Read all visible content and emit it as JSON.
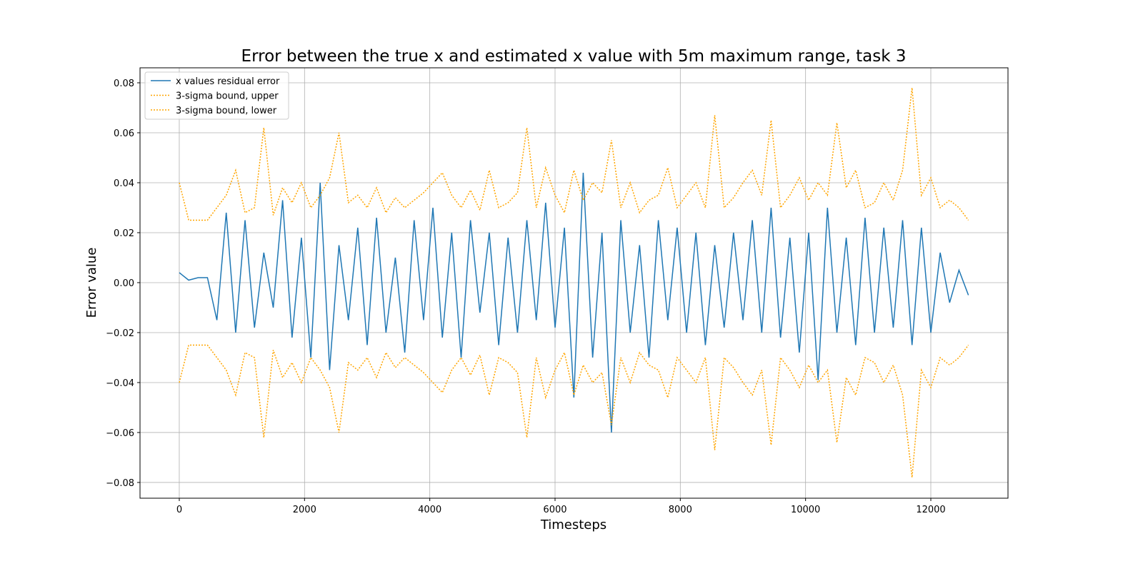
{
  "chart_data": {
    "type": "line",
    "title": "Error between the true x and estimated x value with 5m maximum range, task 3",
    "xlabel": "Timesteps",
    "ylabel": "Error value",
    "x": [
      0,
      150,
      300,
      450,
      600,
      750,
      900,
      1050,
      1200,
      1350,
      1500,
      1650,
      1800,
      1950,
      2100,
      2250,
      2400,
      2550,
      2700,
      2850,
      3000,
      3150,
      3300,
      3450,
      3600,
      3750,
      3900,
      4050,
      4200,
      4350,
      4500,
      4650,
      4800,
      4950,
      5100,
      5250,
      5400,
      5550,
      5700,
      5850,
      6000,
      6150,
      6300,
      6450,
      6600,
      6750,
      6900,
      7050,
      7200,
      7350,
      7500,
      7650,
      7800,
      7950,
      8100,
      8250,
      8400,
      8550,
      8700,
      8850,
      9000,
      9150,
      9300,
      9450,
      9600,
      9750,
      9900,
      10050,
      10200,
      10350,
      10500,
      10650,
      10800,
      10950,
      11100,
      11250,
      11400,
      11550,
      11700,
      11850,
      12000,
      12150,
      12300,
      12450,
      12600
    ],
    "series": [
      {
        "name": "x values residual error",
        "color": "#1f77b4",
        "linestyle": "solid",
        "values": [
          0.004,
          0.001,
          0.002,
          0.002,
          -0.015,
          0.028,
          -0.02,
          0.025,
          -0.018,
          0.012,
          -0.01,
          0.033,
          -0.022,
          0.018,
          -0.03,
          0.04,
          -0.035,
          0.015,
          -0.015,
          0.022,
          -0.025,
          0.026,
          -0.02,
          0.01,
          -0.028,
          0.025,
          -0.015,
          0.03,
          -0.022,
          0.02,
          -0.03,
          0.025,
          -0.012,
          0.02,
          -0.025,
          0.018,
          -0.02,
          0.025,
          -0.015,
          0.032,
          -0.018,
          0.022,
          -0.046,
          0.044,
          -0.03,
          0.02,
          -0.06,
          0.025,
          -0.02,
          0.015,
          -0.03,
          0.025,
          -0.015,
          0.022,
          -0.02,
          0.02,
          -0.025,
          0.015,
          -0.018,
          0.02,
          -0.015,
          0.025,
          -0.02,
          0.03,
          -0.022,
          0.018,
          -0.028,
          0.02,
          -0.039,
          0.03,
          -0.02,
          0.018,
          -0.025,
          0.026,
          -0.02,
          0.022,
          -0.018,
          0.025,
          -0.025,
          0.022,
          -0.02,
          0.012,
          -0.008,
          0.005,
          -0.005
        ]
      },
      {
        "name": "3-sigma bound, upper",
        "color": "#ffa500",
        "linestyle": "dotted",
        "values": [
          0.04,
          0.025,
          0.025,
          0.025,
          0.03,
          0.035,
          0.045,
          0.028,
          0.03,
          0.062,
          0.027,
          0.038,
          0.032,
          0.04,
          0.03,
          0.035,
          0.042,
          0.06,
          0.032,
          0.035,
          0.03,
          0.038,
          0.028,
          0.034,
          0.03,
          0.033,
          0.036,
          0.04,
          0.044,
          0.035,
          0.03,
          0.037,
          0.029,
          0.045,
          0.03,
          0.032,
          0.036,
          0.062,
          0.03,
          0.046,
          0.035,
          0.028,
          0.045,
          0.033,
          0.04,
          0.036,
          0.057,
          0.03,
          0.04,
          0.028,
          0.033,
          0.035,
          0.046,
          0.03,
          0.035,
          0.04,
          0.03,
          0.067,
          0.03,
          0.034,
          0.04,
          0.045,
          0.035,
          0.065,
          0.03,
          0.035,
          0.042,
          0.033,
          0.04,
          0.035,
          0.064,
          0.038,
          0.045,
          0.03,
          0.032,
          0.04,
          0.033,
          0.045,
          0.078,
          0.035,
          0.042,
          0.03,
          0.033,
          0.03,
          0.025
        ]
      },
      {
        "name": "3-sigma bound, lower",
        "color": "#ffa500",
        "linestyle": "dotted",
        "values": [
          -0.04,
          -0.025,
          -0.025,
          -0.025,
          -0.03,
          -0.035,
          -0.045,
          -0.028,
          -0.03,
          -0.062,
          -0.027,
          -0.038,
          -0.032,
          -0.04,
          -0.03,
          -0.035,
          -0.042,
          -0.06,
          -0.032,
          -0.035,
          -0.03,
          -0.038,
          -0.028,
          -0.034,
          -0.03,
          -0.033,
          -0.036,
          -0.04,
          -0.044,
          -0.035,
          -0.03,
          -0.037,
          -0.029,
          -0.045,
          -0.03,
          -0.032,
          -0.036,
          -0.062,
          -0.03,
          -0.046,
          -0.035,
          -0.028,
          -0.045,
          -0.033,
          -0.04,
          -0.036,
          -0.057,
          -0.03,
          -0.04,
          -0.028,
          -0.033,
          -0.035,
          -0.046,
          -0.03,
          -0.035,
          -0.04,
          -0.03,
          -0.067,
          -0.03,
          -0.034,
          -0.04,
          -0.045,
          -0.035,
          -0.065,
          -0.03,
          -0.035,
          -0.042,
          -0.033,
          -0.04,
          -0.035,
          -0.064,
          -0.038,
          -0.045,
          -0.03,
          -0.032,
          -0.04,
          -0.033,
          -0.045,
          -0.078,
          -0.035,
          -0.042,
          -0.03,
          -0.033,
          -0.03,
          -0.025
        ]
      }
    ],
    "xlim": [
      -627,
      13232
    ],
    "ylim": [
      -0.0863,
      0.086
    ],
    "xticks": [
      0,
      2000,
      4000,
      6000,
      8000,
      10000,
      12000
    ],
    "yticks": [
      {
        "value": -0.08,
        "label": "−0.08"
      },
      {
        "value": -0.06,
        "label": "−0.06"
      },
      {
        "value": -0.04,
        "label": "−0.04"
      },
      {
        "value": -0.02,
        "label": "−0.02"
      },
      {
        "value": 0,
        "label": "0.00"
      },
      0.02,
      0.04,
      0.06,
      0.08
    ],
    "grid": true,
    "legend": "upper left"
  }
}
